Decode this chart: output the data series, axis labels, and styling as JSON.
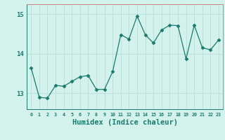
{
  "x": [
    0,
    1,
    2,
    3,
    4,
    5,
    6,
    7,
    8,
    9,
    10,
    11,
    12,
    13,
    14,
    15,
    16,
    17,
    18,
    19,
    20,
    21,
    22,
    23
  ],
  "y": [
    13.65,
    12.9,
    12.88,
    13.2,
    13.18,
    13.3,
    13.42,
    13.45,
    13.1,
    13.1,
    13.55,
    14.48,
    14.37,
    14.95,
    14.48,
    14.27,
    14.6,
    14.72,
    14.71,
    13.87,
    14.72,
    14.15,
    14.1,
    14.35
  ],
  "line_color": "#1a7a6e",
  "marker": "D",
  "marker_size": 2.5,
  "bg_color": "#d4f2ec",
  "grid_color": "#b8e0d8",
  "tick_label_color": "#1a7a6e",
  "xlabel": "Humidex (Indice chaleur)",
  "xlabel_color": "#1a7a6e",
  "xlabel_fontsize": 7.5,
  "ylim": [
    12.6,
    15.25
  ],
  "yticks": [
    13,
    14,
    15
  ],
  "xlim": [
    -0.5,
    23.5
  ],
  "xticks": [
    0,
    1,
    2,
    3,
    4,
    5,
    6,
    7,
    8,
    9,
    10,
    11,
    12,
    13,
    14,
    15,
    16,
    17,
    18,
    19,
    20,
    21,
    22,
    23
  ]
}
